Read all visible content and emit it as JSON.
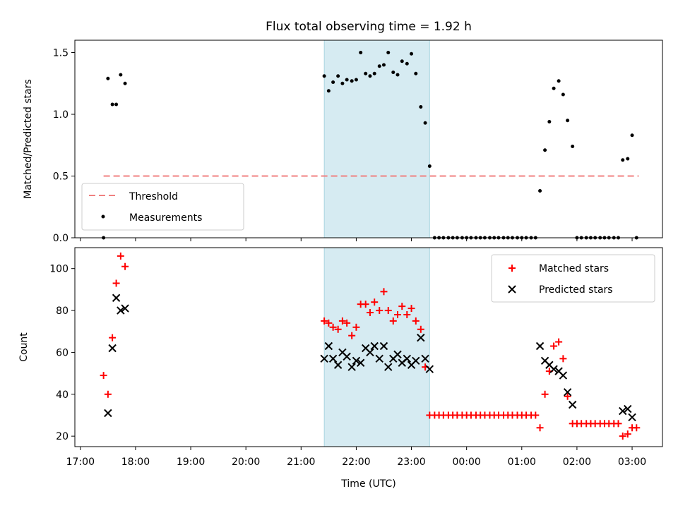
{
  "chart_data": [
    {
      "type": "scatter",
      "title": "Flux total observing time = 1.92 h",
      "ylabel": "Matched/Predicted stars",
      "xlabel": "",
      "xlim": [
        16.9,
        27.55
      ],
      "ylim": [
        0,
        1.6
      ],
      "yticks": [
        0.0,
        0.5,
        1.0,
        1.5
      ],
      "ytick_labels": [
        "0.0",
        "0.5",
        "1.0",
        "1.5"
      ],
      "shaded_interval": [
        21.42,
        23.33
      ],
      "threshold": {
        "label": "Threshold",
        "value": 0.5,
        "x_range": [
          17.42,
          27.12
        ],
        "color": "#f08080"
      },
      "legend": {
        "position": "lower-left",
        "entries": [
          "Threshold",
          "Measurements"
        ]
      },
      "series": [
        {
          "name": "Measurements",
          "color": "#000000",
          "x": [
            17.42,
            17.5,
            17.58,
            17.65,
            17.73,
            17.81,
            21.42,
            21.5,
            21.58,
            21.67,
            21.75,
            21.83,
            21.92,
            22.0,
            22.08,
            22.17,
            22.25,
            22.33,
            22.42,
            22.5,
            22.58,
            22.67,
            22.75,
            22.83,
            22.92,
            23.0,
            23.08,
            23.17,
            23.25,
            23.33,
            23.42,
            23.5,
            23.58,
            23.67,
            23.75,
            23.83,
            23.92,
            24.0,
            24.08,
            24.17,
            24.25,
            24.33,
            24.42,
            24.5,
            24.58,
            24.67,
            24.75,
            24.83,
            24.92,
            25.0,
            25.08,
            25.17,
            25.25,
            25.33,
            25.42,
            25.5,
            25.58,
            25.67,
            25.75,
            25.83,
            25.92,
            26.0,
            26.08,
            26.17,
            26.25,
            26.33,
            26.42,
            26.5,
            26.58,
            26.67,
            26.75,
            26.83,
            26.92,
            27.0,
            27.08
          ],
          "y": [
            0.0,
            1.29,
            1.08,
            1.08,
            1.32,
            1.25,
            1.31,
            1.19,
            1.26,
            1.31,
            1.25,
            1.28,
            1.27,
            1.28,
            1.5,
            1.33,
            1.31,
            1.33,
            1.39,
            1.4,
            1.5,
            1.34,
            1.32,
            1.43,
            1.41,
            1.49,
            1.33,
            1.06,
            0.93,
            0.58,
            0.0,
            0.0,
            0.0,
            0.0,
            0.0,
            0.0,
            0.0,
            0.0,
            0.0,
            0.0,
            0.0,
            0.0,
            0.0,
            0.0,
            0.0,
            0.0,
            0.0,
            0.0,
            0.0,
            0.0,
            0.0,
            0.0,
            0.0,
            0.38,
            0.71,
            0.94,
            1.21,
            1.27,
            1.16,
            0.95,
            0.74,
            0.0,
            0.0,
            0.0,
            0.0,
            0.0,
            0.0,
            0.0,
            0.0,
            0.0,
            0.0,
            0.63,
            0.64,
            0.83,
            0.0
          ]
        }
      ]
    },
    {
      "type": "scatter",
      "title": "",
      "ylabel": "Count",
      "xlabel": "Time (UTC)",
      "xlim": [
        16.9,
        27.55
      ],
      "ylim": [
        15,
        110
      ],
      "yticks": [
        20,
        40,
        60,
        80,
        100
      ],
      "ytick_labels": [
        "20",
        "40",
        "60",
        "80",
        "100"
      ],
      "xticks": [
        17,
        18,
        19,
        20,
        21,
        22,
        23,
        24,
        25,
        26,
        27
      ],
      "xtick_labels": [
        "17:00",
        "18:00",
        "19:00",
        "20:00",
        "21:00",
        "22:00",
        "23:00",
        "00:00",
        "01:00",
        "02:00",
        "03:00"
      ],
      "shaded_interval": [
        21.42,
        23.33
      ],
      "legend": {
        "position": "top-right",
        "entries": [
          "Matched stars",
          "Predicted stars"
        ]
      },
      "series": [
        {
          "name": "Matched stars",
          "marker": "+",
          "color": "#ff0000",
          "x": [
            17.42,
            17.5,
            17.58,
            17.65,
            17.73,
            17.81,
            21.42,
            21.5,
            21.58,
            21.67,
            21.75,
            21.83,
            21.92,
            22.0,
            22.08,
            22.17,
            22.25,
            22.33,
            22.42,
            22.5,
            22.58,
            22.67,
            22.75,
            22.83,
            22.92,
            23.0,
            23.08,
            23.17,
            23.25,
            23.33,
            23.42,
            23.5,
            23.58,
            23.67,
            23.75,
            23.83,
            23.92,
            24.0,
            24.08,
            24.17,
            24.25,
            24.33,
            24.42,
            24.5,
            24.58,
            24.67,
            24.75,
            24.83,
            24.92,
            25.0,
            25.08,
            25.17,
            25.25,
            25.33,
            25.42,
            25.5,
            25.58,
            25.67,
            25.75,
            25.83,
            25.92,
            26.0,
            26.08,
            26.17,
            26.25,
            26.33,
            26.42,
            26.5,
            26.58,
            26.67,
            26.75,
            26.83,
            26.92,
            27.0,
            27.08
          ],
          "y": [
            49,
            40,
            67,
            93,
            106,
            101,
            75,
            74,
            72,
            71,
            75,
            74,
            68,
            72,
            83,
            83,
            79,
            84,
            80,
            89,
            80,
            75,
            78,
            82,
            78,
            81,
            75,
            71,
            53,
            30,
            30,
            30,
            30,
            30,
            30,
            30,
            30,
            30,
            30,
            30,
            30,
            30,
            30,
            30,
            30,
            30,
            30,
            30,
            30,
            30,
            30,
            30,
            30,
            24,
            40,
            51,
            63,
            65,
            57,
            39,
            26,
            26,
            26,
            26,
            26,
            26,
            26,
            26,
            26,
            26,
            26,
            20,
            21,
            24,
            24
          ]
        },
        {
          "name": "Predicted stars",
          "marker": "x",
          "color": "#000000",
          "x": [
            17.5,
            17.58,
            17.65,
            17.73,
            17.81,
            21.42,
            21.5,
            21.58,
            21.67,
            21.75,
            21.83,
            21.92,
            22.0,
            22.08,
            22.17,
            22.25,
            22.33,
            22.42,
            22.5,
            22.58,
            22.67,
            22.75,
            22.83,
            22.92,
            23.0,
            23.08,
            23.17,
            23.25,
            23.33,
            25.33,
            25.42,
            25.5,
            25.58,
            25.67,
            25.75,
            25.83,
            25.92,
            26.83,
            26.92,
            27.0
          ],
          "y": [
            31,
            62,
            86,
            80,
            81,
            57,
            63,
            57,
            54,
            60,
            58,
            53,
            56,
            55,
            62,
            60,
            63,
            57,
            63,
            53,
            57,
            59,
            55,
            57,
            54,
            56,
            67,
            57,
            52,
            63,
            56,
            54,
            52,
            51,
            49,
            41,
            35,
            32,
            33,
            29
          ]
        }
      ]
    }
  ]
}
